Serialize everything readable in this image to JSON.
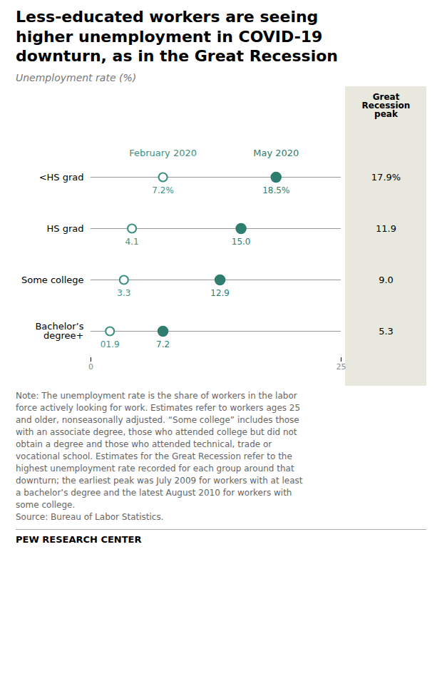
{
  "chart_data": {
    "type": "dot",
    "title": "Less-educated workers are seeing\nhigher unemployment in COVID-19\ndownturn, as in the Great Recession",
    "subtitle": "Unemployment rate (%)",
    "categories": [
      "<HS grad",
      "HS grad",
      "Some college",
      "Bachelor’s\ndegree+"
    ],
    "series": [
      {
        "name": "February 2020",
        "color": "#3d9180",
        "marker": "open_circle",
        "values": [
          7.2,
          4.1,
          3.3,
          1.9
        ],
        "value_labels": [
          "7.2%",
          "4.1",
          "3.3",
          "01.9"
        ]
      },
      {
        "name": "May 2020",
        "color": "#2e7d6e",
        "marker": "circle",
        "values": [
          18.5,
          15.0,
          12.9,
          7.2
        ],
        "value_labels": [
          "18.5%",
          "15.0",
          "12.9",
          "7.2"
        ]
      }
    ],
    "great_recession_peak": {
      "name": "Great\nRecession\npeak",
      "color": "#e8e8df",
      "values": [
        17.9,
        11.9,
        9.0,
        5.3
      ],
      "value_labels": [
        "17.9%",
        "11.9",
        "9.0",
        "5.3"
      ]
    },
    "xlim": [
      0,
      25
    ],
    "xticks": [
      0,
      25
    ],
    "tick_labels": "x",
    "grid": false,
    "data_labels": true,
    "note": "Note: The unemployment rate is the share of workers in the labor\nforce actively looking for work. Estimates refer to workers ages 25\nand older, nonseasonally adjusted. “Some college” includes those\nwith an associate degree, those who attended college but did not\nobtain a degree and those who attended technical, trade or\nvocational school. Estimates for the Great Recession refer to the\nhighest unemployment rate recorded for each group around that\ndownturn; the earliest peak was July 2009 for workers with at least\na bachelor’s degree and the latest August 2010 for workers with\nsome college.\nSource: Bureau of Labor Statistics.",
    "source": "PEW RESEARCH CENTER"
  }
}
